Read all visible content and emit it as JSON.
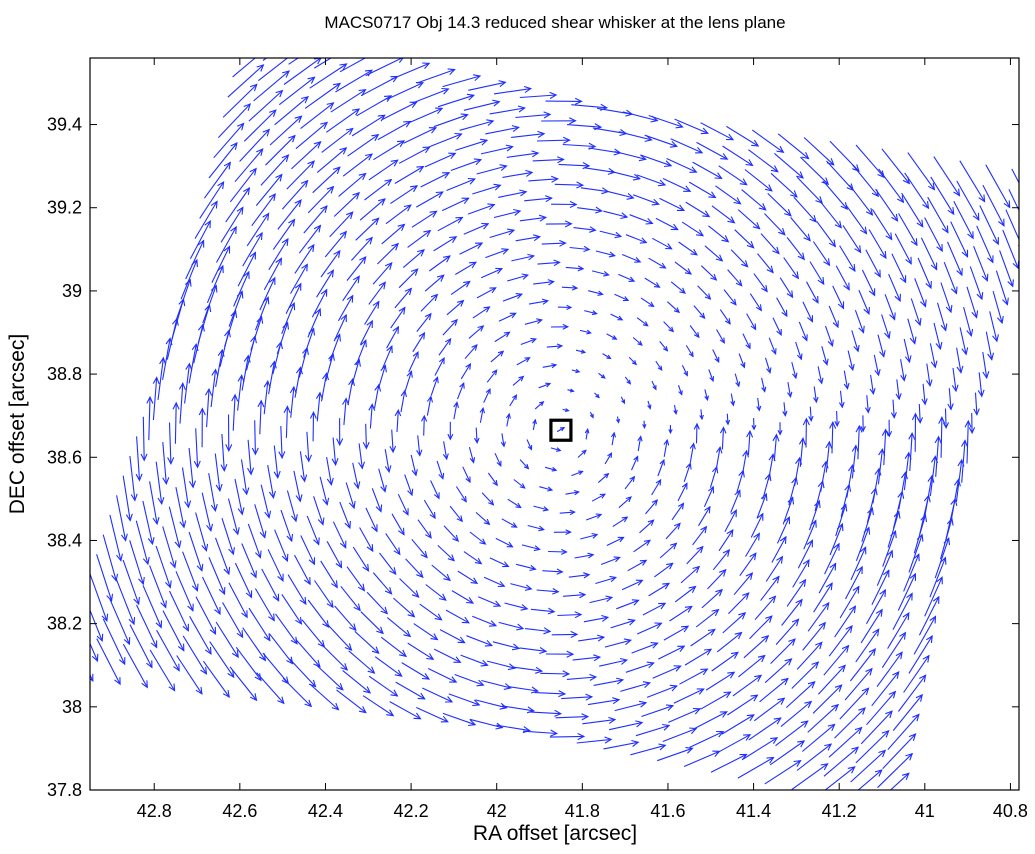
{
  "chart_data": {
    "type": "quiver",
    "title": "MACS0717 Obj 14.3 reduced shear whisker at the lens plane",
    "xlabel": "RA offset [arcsec]",
    "ylabel": "DEC offset [arcsec]",
    "xlim": [
      42.95,
      40.78
    ],
    "ylim": [
      37.8,
      39.56
    ],
    "x_reversed": true,
    "xticks": [
      42.8,
      42.6,
      42.4,
      42.2,
      42,
      41.8,
      41.6,
      41.4,
      41.2,
      41,
      40.8
    ],
    "xtick_labels": [
      "42.8",
      "42.6",
      "42.4",
      "42.2",
      "42",
      "41.8",
      "41.6",
      "41.4",
      "41.2",
      "41",
      "40.8"
    ],
    "yticks": [
      37.8,
      38,
      38.2,
      38.4,
      38.6,
      38.8,
      39,
      39.2,
      39.4
    ],
    "ytick_labels": [
      "37.8",
      "38",
      "38.2",
      "38.4",
      "38.6",
      "38.8",
      "39",
      "39.2",
      "39.4"
    ],
    "grid": false,
    "whisker_color": "#1f2fff",
    "marker": {
      "type": "square",
      "x": 41.85,
      "y": 38.665,
      "color": "#000000"
    },
    "grid_region": {
      "corners": [
        [
          42.97,
          38.12
        ],
        [
          42.56,
          39.6
        ],
        [
          40.77,
          39.24
        ],
        [
          41.08,
          37.8
        ]
      ],
      "rows": 32,
      "cols": 31
    },
    "shear_field": {
      "center": [
        41.85,
        38.665
      ],
      "description_of_orientation": "vectors tangential about the square marker; long steep whiskers toward the left, short near-horizontal whiskers toward the upper right, long flat whiskers along the bottom"
    }
  }
}
